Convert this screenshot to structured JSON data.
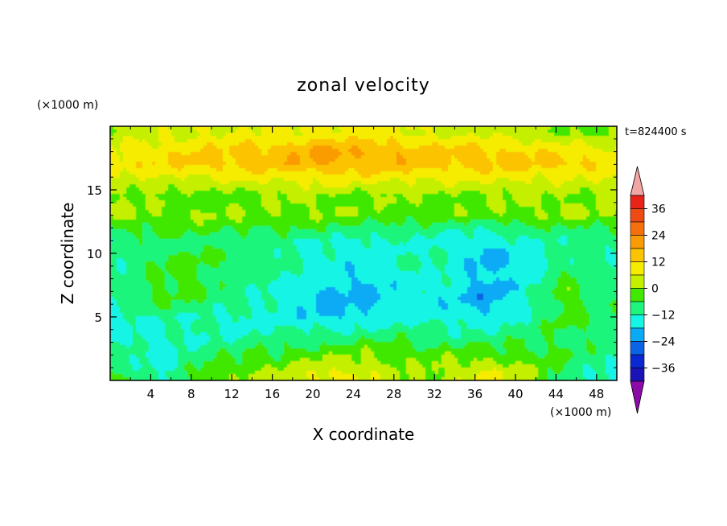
{
  "chart_data": {
    "type": "heatmap",
    "title": "zonal velocity",
    "xlabel": "X coordinate",
    "ylabel": "Z coordinate",
    "x_unit": "(×1000 m)",
    "y_unit": "(×1000 m)",
    "time_label": "t=824400 s",
    "xlim": [
      0,
      50
    ],
    "ylim": [
      0,
      20
    ],
    "xticks": [
      4,
      8,
      12,
      16,
      20,
      24,
      28,
      32,
      36,
      40,
      44,
      48
    ],
    "yticks": [
      5,
      10,
      15
    ],
    "colorbar": {
      "levels": [
        -42,
        -36,
        -30,
        -24,
        -18,
        -12,
        -6,
        0,
        6,
        12,
        18,
        24,
        30,
        36,
        42
      ],
      "tick_labels": [
        36,
        24,
        12,
        0,
        -12,
        -24,
        -36
      ],
      "colors": [
        "#f2a5a5",
        "#e8231a",
        "#ee4a14",
        "#f5700d",
        "#fa9b06",
        "#fcc300",
        "#f6ec00",
        "#c4f000",
        "#41e800",
        "#1ef57c",
        "#15f5e5",
        "#0aaaf5",
        "#0a64e6",
        "#0a28d2",
        "#1a14b8",
        "#4b0aa8",
        "#8c0aa8"
      ]
    },
    "field_rows_z": [
      19.5,
      18.0,
      17.0,
      16.0,
      14.5,
      13.0,
      12.0,
      11.0,
      9.5,
      8.0,
      6.5,
      5.0,
      3.5,
      2.0,
      0.5
    ],
    "field_cols_x": [
      1,
      5,
      9,
      13,
      17,
      21,
      25,
      29,
      33,
      37,
      41,
      45,
      49
    ],
    "field_values": [
      [
        8,
        10,
        12,
        12,
        12,
        14,
        14,
        12,
        10,
        10,
        8,
        6,
        4
      ],
      [
        14,
        16,
        18,
        20,
        22,
        26,
        24,
        22,
        20,
        20,
        18,
        16,
        14
      ],
      [
        16,
        18,
        20,
        20,
        22,
        24,
        22,
        22,
        20,
        20,
        20,
        20,
        18
      ],
      [
        10,
        12,
        12,
        14,
        14,
        16,
        16,
        14,
        14,
        14,
        14,
        12,
        12
      ],
      [
        6,
        4,
        2,
        4,
        6,
        6,
        4,
        6,
        4,
        6,
        6,
        6,
        6
      ],
      [
        6,
        6,
        6,
        6,
        6,
        6,
        4,
        4,
        4,
        4,
        6,
        6,
        6
      ],
      [
        2,
        2,
        2,
        2,
        0,
        0,
        -2,
        -2,
        -4,
        -4,
        -2,
        0,
        0
      ],
      [
        -4,
        -2,
        -2,
        -4,
        -4,
        -6,
        -8,
        -6,
        -8,
        -10,
        -6,
        -4,
        -4
      ],
      [
        -4,
        0,
        2,
        -2,
        -4,
        -8,
        -10,
        -6,
        -6,
        -14,
        -10,
        -4,
        -4
      ],
      [
        -6,
        2,
        0,
        -4,
        -6,
        -10,
        -12,
        -8,
        -6,
        -14,
        -8,
        2,
        -4
      ],
      [
        -4,
        2,
        0,
        -4,
        -8,
        -14,
        -14,
        -8,
        -10,
        -16,
        -8,
        4,
        -2
      ],
      [
        -8,
        -4,
        -6,
        -8,
        -8,
        -12,
        -12,
        -8,
        -8,
        -10,
        -6,
        2,
        -2
      ],
      [
        -8,
        -6,
        -6,
        -6,
        -4,
        -4,
        -2,
        -2,
        -4,
        -4,
        -2,
        0,
        -4
      ],
      [
        -2,
        -10,
        -2,
        0,
        2,
        4,
        6,
        4,
        4,
        4,
        2,
        0,
        -4
      ],
      [
        0,
        -8,
        2,
        6,
        8,
        14,
        12,
        6,
        8,
        14,
        8,
        -2,
        -8
      ]
    ]
  }
}
